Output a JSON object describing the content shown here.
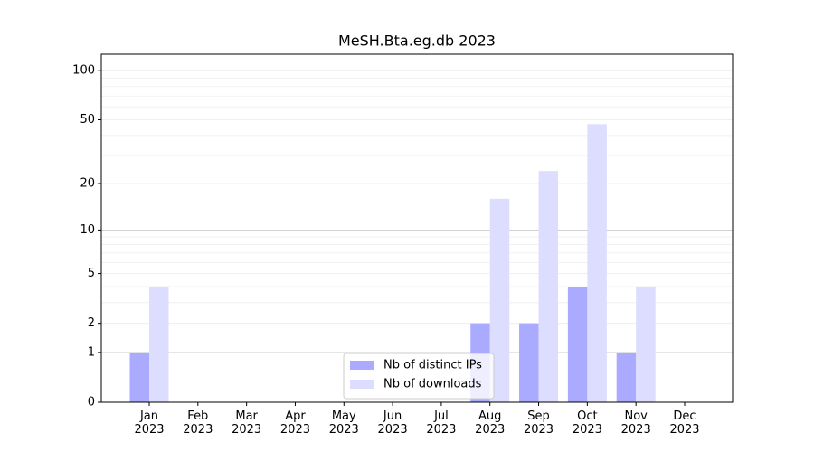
{
  "chart_data": {
    "type": "bar",
    "title": "MeSH.Bta.eg.db 2023",
    "categories": [
      "Jan\n2023",
      "Feb\n2023",
      "Mar\n2023",
      "Apr\n2023",
      "May\n2023",
      "Jun\n2023",
      "Jul\n2023",
      "Aug\n2023",
      "Sep\n2023",
      "Oct\n2023",
      "Nov\n2023",
      "Dec\n2023"
    ],
    "series": [
      {
        "name": "Nb of distinct IPs",
        "color": "#aaaaff",
        "values": [
          1,
          0,
          0,
          0,
          0,
          0,
          0,
          2,
          2,
          4,
          1,
          0
        ]
      },
      {
        "name": "Nb of downloads",
        "color": "#ddddff",
        "values": [
          4,
          0,
          0,
          0,
          0,
          0,
          0,
          16,
          24,
          47,
          4,
          0
        ]
      }
    ],
    "yscale": "log1p",
    "ylim": [
      0,
      126
    ],
    "yticks": [
      0,
      1,
      2,
      5,
      10,
      20,
      50,
      100
    ],
    "grid": true,
    "legend": "lower center"
  }
}
